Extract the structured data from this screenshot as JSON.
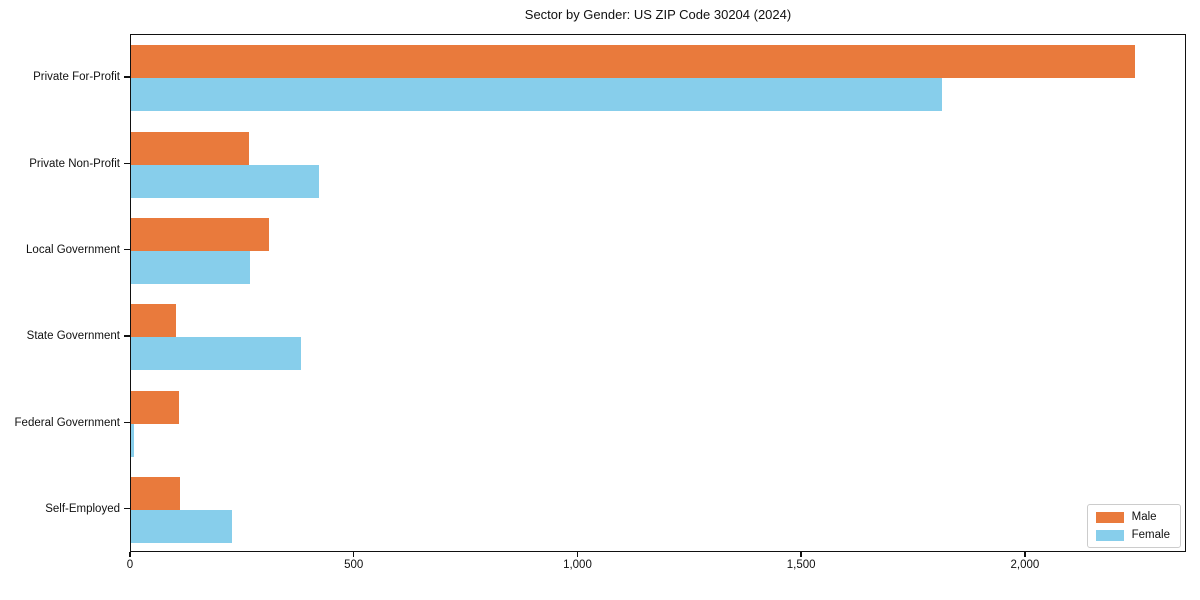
{
  "chart_data": {
    "type": "bar",
    "orientation": "horizontal",
    "title": "Sector by Gender: US ZIP Code 30204 (2024)",
    "categories": [
      "Private For-Profit",
      "Private Non-Profit",
      "Local Government",
      "State Government",
      "Federal Government",
      "Self-Employed"
    ],
    "series": [
      {
        "name": "Male",
        "color": "#E97A3C",
        "values": [
          2248,
          264,
          308,
          101,
          107,
          110
        ]
      },
      {
        "name": "Female",
        "color": "#87CEEB",
        "values": [
          1816,
          422,
          266,
          380,
          7,
          226
        ]
      }
    ],
    "xlabel": "",
    "ylabel": "",
    "xlim": [
      0,
      2360
    ],
    "xticks": [
      0,
      500,
      1000,
      1500,
      2000
    ],
    "xtick_labels": [
      "0",
      "500",
      "1,000",
      "1,500",
      "2,000"
    ],
    "legend_position": "lower right",
    "grid": false,
    "colors": {
      "axis": "#111111",
      "background": "#ffffff",
      "legend_border": "#cccccc"
    }
  }
}
